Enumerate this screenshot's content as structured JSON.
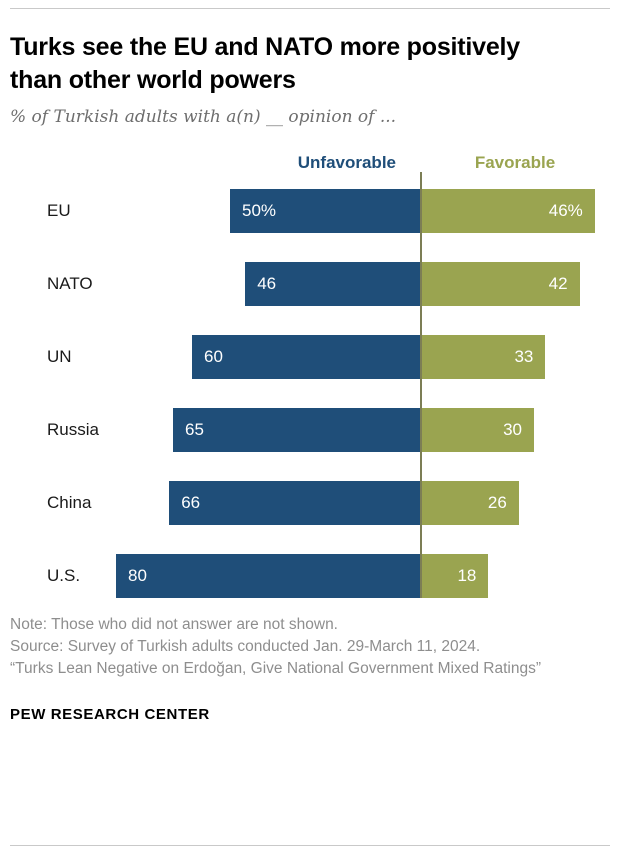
{
  "title": "Turks see the EU and NATO more positively than other world powers",
  "subtitle": "% of Turkish adults with a(n) __ opinion of ...",
  "note": "Note: Those who did not answer are not shown.",
  "source": "Source: Survey of Turkish adults conducted Jan. 29-March 11, 2024.",
  "source_quote": "“Turks Lean Negative on Erdoğan, Give National Government Mixed Ratings”",
  "brand": "PEW RESEARCH CENTER",
  "colors": {
    "unfavorable": "#1f4e79",
    "favorable": "#9aa450",
    "axis_line": "#7c7e55",
    "title": "#000000",
    "subtitle_gray": "#6e6e6e",
    "note_gray": "#8e8e8e"
  },
  "chart_data": {
    "type": "bar",
    "variant": "horizontal-diverging",
    "title": "Turks see the EU and NATO more positively than other world powers",
    "subtitle": "% of Turkish adults with a(n) __ opinion of ...",
    "categories": [
      "EU",
      "NATO",
      "UN",
      "Russia",
      "China",
      "U.S."
    ],
    "series": [
      {
        "name": "Unfavorable",
        "side": "left",
        "color": "#1f4e79",
        "values": [
          50,
          46,
          60,
          65,
          66,
          80
        ],
        "labels": [
          "50%",
          "46",
          "60",
          "65",
          "66",
          "80"
        ]
      },
      {
        "name": "Favorable",
        "side": "right",
        "color": "#9aa450",
        "values": [
          46,
          42,
          33,
          30,
          26,
          18
        ],
        "labels": [
          "46%",
          "42",
          "33",
          "30",
          "26",
          "18"
        ]
      }
    ],
    "xmax": 80,
    "legend_position": "top",
    "grid": false,
    "value_labels": "inside-bar"
  }
}
